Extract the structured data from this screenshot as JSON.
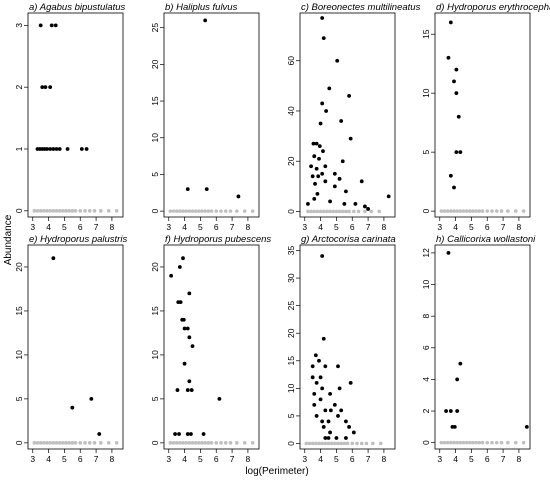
{
  "figure": {
    "ylabel": "Abundance",
    "xlabel": "log(Perimeter)"
  },
  "chart_data": [
    {
      "type": "scatter",
      "title": "a) Agabus bipustulatus",
      "xlim": [
        2.7,
        8.7
      ],
      "ylim": [
        -0.1,
        3.2
      ],
      "xticks": [
        3,
        4,
        5,
        6,
        7,
        8
      ],
      "yticks": [
        0,
        1,
        2,
        3
      ],
      "absent_color": "#bfbfbf",
      "present_color": "#000000",
      "present": [
        {
          "x": 3.5,
          "y": 3
        },
        {
          "x": 4.2,
          "y": 3
        },
        {
          "x": 4.45,
          "y": 3
        },
        {
          "x": 3.6,
          "y": 2
        },
        {
          "x": 3.8,
          "y": 2
        },
        {
          "x": 4.1,
          "y": 2
        },
        {
          "x": 3.3,
          "y": 1
        },
        {
          "x": 3.45,
          "y": 1
        },
        {
          "x": 3.6,
          "y": 1
        },
        {
          "x": 3.75,
          "y": 1
        },
        {
          "x": 3.9,
          "y": 1
        },
        {
          "x": 4.1,
          "y": 1
        },
        {
          "x": 4.3,
          "y": 1
        },
        {
          "x": 4.5,
          "y": 1
        },
        {
          "x": 4.7,
          "y": 1
        },
        {
          "x": 5.2,
          "y": 1
        },
        {
          "x": 6.1,
          "y": 1
        },
        {
          "x": 6.4,
          "y": 1
        }
      ],
      "absent": [
        3.1,
        3.3,
        3.5,
        3.7,
        3.9,
        4.1,
        4.3,
        4.5,
        4.7,
        4.9,
        5.1,
        5.3,
        5.5,
        5.7,
        6.0,
        6.3,
        6.6,
        6.9,
        7.3,
        7.8,
        8.3
      ]
    },
    {
      "type": "scatter",
      "title": "b) Haliplus fulvus",
      "xlim": [
        2.7,
        8.7
      ],
      "ylim": [
        -0.8,
        27
      ],
      "xticks": [
        3,
        4,
        5,
        6,
        7,
        8
      ],
      "yticks": [
        0,
        5,
        10,
        15,
        20,
        25
      ],
      "absent_color": "#bfbfbf",
      "present_color": "#000000",
      "present": [
        {
          "x": 5.3,
          "y": 26
        },
        {
          "x": 4.2,
          "y": 3
        },
        {
          "x": 5.4,
          "y": 3
        },
        {
          "x": 7.4,
          "y": 2
        }
      ],
      "absent": [
        3.1,
        3.3,
        3.5,
        3.7,
        3.9,
        4.1,
        4.3,
        4.5,
        4.7,
        4.9,
        5.1,
        5.3,
        5.5,
        5.7,
        6.0,
        6.3,
        6.6,
        6.9,
        7.3,
        7.8,
        8.3
      ]
    },
    {
      "type": "scatter",
      "title": "c) Boreonectes multilineatus",
      "xlim": [
        2.7,
        8.7
      ],
      "ylim": [
        -2.2,
        79
      ],
      "xticks": [
        3,
        4,
        5,
        6,
        7,
        8
      ],
      "yticks": [
        0,
        20,
        40,
        60
      ],
      "absent_color": "#bfbfbf",
      "present_color": "#000000",
      "present": [
        {
          "x": 4.1,
          "y": 77
        },
        {
          "x": 4.2,
          "y": 69
        },
        {
          "x": 4.55,
          "y": 49
        },
        {
          "x": 5.05,
          "y": 60
        },
        {
          "x": 4.1,
          "y": 43
        },
        {
          "x": 5.8,
          "y": 46
        },
        {
          "x": 4.35,
          "y": 40
        },
        {
          "x": 4.0,
          "y": 35
        },
        {
          "x": 5.3,
          "y": 36
        },
        {
          "x": 5.9,
          "y": 29
        },
        {
          "x": 3.55,
          "y": 27
        },
        {
          "x": 3.75,
          "y": 27
        },
        {
          "x": 3.95,
          "y": 26
        },
        {
          "x": 3.6,
          "y": 22
        },
        {
          "x": 3.9,
          "y": 21
        },
        {
          "x": 4.15,
          "y": 24
        },
        {
          "x": 3.4,
          "y": 18
        },
        {
          "x": 3.75,
          "y": 17
        },
        {
          "x": 4.3,
          "y": 18
        },
        {
          "x": 3.5,
          "y": 14
        },
        {
          "x": 3.85,
          "y": 14
        },
        {
          "x": 4.1,
          "y": 15
        },
        {
          "x": 4.3,
          "y": 12
        },
        {
          "x": 3.65,
          "y": 11
        },
        {
          "x": 4.9,
          "y": 15
        },
        {
          "x": 5.4,
          "y": 20
        },
        {
          "x": 4.9,
          "y": 10
        },
        {
          "x": 5.2,
          "y": 13
        },
        {
          "x": 5.6,
          "y": 8
        },
        {
          "x": 6.6,
          "y": 12
        },
        {
          "x": 6.2,
          "y": 3
        },
        {
          "x": 6.8,
          "y": 2
        },
        {
          "x": 3.6,
          "y": 5
        },
        {
          "x": 8.3,
          "y": 6
        },
        {
          "x": 3.8,
          "y": 7
        },
        {
          "x": 5.5,
          "y": 3
        },
        {
          "x": 3.2,
          "y": 3
        },
        {
          "x": 4.6,
          "y": 4
        },
        {
          "x": 7.0,
          "y": 1
        }
      ],
      "absent": [
        3.2,
        3.4,
        3.6,
        3.8,
        4.0,
        4.2,
        4.4,
        4.6,
        4.8,
        5.0,
        5.2,
        5.4,
        5.6,
        5.8,
        6.1,
        6.4,
        6.8,
        7.2,
        7.7
      ]
    },
    {
      "type": "scatter",
      "title": "d) Hydroporus erythrocephalus",
      "xlim": [
        2.7,
        8.7
      ],
      "ylim": [
        -0.5,
        16.8
      ],
      "xticks": [
        3,
        4,
        5,
        6,
        7,
        8
      ],
      "yticks": [
        0,
        5,
        10,
        15
      ],
      "absent_color": "#bfbfbf",
      "present_color": "#000000",
      "present": [
        {
          "x": 3.7,
          "y": 16
        },
        {
          "x": 3.55,
          "y": 13
        },
        {
          "x": 4.05,
          "y": 12
        },
        {
          "x": 3.9,
          "y": 11
        },
        {
          "x": 4.05,
          "y": 10
        },
        {
          "x": 4.2,
          "y": 8
        },
        {
          "x": 4.05,
          "y": 5
        },
        {
          "x": 4.3,
          "y": 5
        },
        {
          "x": 3.7,
          "y": 3
        },
        {
          "x": 3.9,
          "y": 2
        }
      ],
      "absent": [
        3.1,
        3.3,
        3.5,
        3.7,
        3.9,
        4.1,
        4.3,
        4.5,
        4.7,
        4.9,
        5.1,
        5.3,
        5.5,
        5.7,
        6.0,
        6.3,
        6.6,
        6.9,
        7.3,
        7.8,
        8.3
      ]
    },
    {
      "type": "scatter",
      "title": "e) Hydroporus palustris",
      "xlim": [
        2.7,
        8.7
      ],
      "ylim": [
        -0.7,
        22.5
      ],
      "xticks": [
        3,
        4,
        5,
        6,
        7,
        8
      ],
      "yticks": [
        0,
        5,
        10,
        15,
        20
      ],
      "absent_color": "#bfbfbf",
      "present_color": "#000000",
      "present": [
        {
          "x": 4.3,
          "y": 21
        },
        {
          "x": 5.5,
          "y": 4
        },
        {
          "x": 6.7,
          "y": 5
        },
        {
          "x": 7.2,
          "y": 1
        }
      ],
      "absent": [
        3.1,
        3.3,
        3.5,
        3.7,
        3.9,
        4.1,
        4.3,
        4.5,
        4.7,
        4.9,
        5.1,
        5.3,
        5.5,
        5.7,
        6.0,
        6.3,
        6.6,
        6.9,
        7.3,
        7.8,
        8.3
      ]
    },
    {
      "type": "scatter",
      "title": "f) Hydroporus pubescens",
      "xlim": [
        2.7,
        8.7
      ],
      "ylim": [
        -0.7,
        22.5
      ],
      "xticks": [
        3,
        4,
        5,
        6,
        7,
        8
      ],
      "yticks": [
        0,
        5,
        10,
        15,
        20
      ],
      "absent_color": "#bfbfbf",
      "present_color": "#000000",
      "present": [
        {
          "x": 3.9,
          "y": 21
        },
        {
          "x": 3.7,
          "y": 20
        },
        {
          "x": 3.15,
          "y": 19
        },
        {
          "x": 4.3,
          "y": 17
        },
        {
          "x": 3.6,
          "y": 16
        },
        {
          "x": 3.75,
          "y": 16
        },
        {
          "x": 3.85,
          "y": 14
        },
        {
          "x": 3.95,
          "y": 14
        },
        {
          "x": 4.0,
          "y": 13
        },
        {
          "x": 4.2,
          "y": 13
        },
        {
          "x": 4.3,
          "y": 12
        },
        {
          "x": 4.5,
          "y": 11
        },
        {
          "x": 4.0,
          "y": 9
        },
        {
          "x": 4.3,
          "y": 7
        },
        {
          "x": 3.55,
          "y": 6
        },
        {
          "x": 4.2,
          "y": 6
        },
        {
          "x": 4.45,
          "y": 6
        },
        {
          "x": 6.2,
          "y": 5
        },
        {
          "x": 3.4,
          "y": 1
        },
        {
          "x": 3.65,
          "y": 1
        },
        {
          "x": 4.2,
          "y": 1
        },
        {
          "x": 4.4,
          "y": 1
        },
        {
          "x": 5.2,
          "y": 1
        }
      ],
      "absent": [
        3.1,
        3.3,
        3.5,
        3.7,
        3.9,
        4.1,
        4.3,
        4.5,
        4.7,
        4.9,
        5.1,
        5.3,
        5.5,
        5.7,
        6.0,
        6.3,
        6.6,
        6.9,
        7.3,
        7.8,
        8.3
      ]
    },
    {
      "type": "scatter",
      "title": "g) Arctocorisa carinata",
      "xlim": [
        2.7,
        8.7
      ],
      "ylim": [
        -1,
        36
      ],
      "xticks": [
        3,
        4,
        5,
        6,
        7,
        8
      ],
      "yticks": [
        0,
        5,
        10,
        15,
        20,
        25,
        30,
        35
      ],
      "absent_color": "#bfbfbf",
      "present_color": "#000000",
      "present": [
        {
          "x": 4.1,
          "y": 34
        },
        {
          "x": 4.2,
          "y": 19
        },
        {
          "x": 3.7,
          "y": 16
        },
        {
          "x": 3.5,
          "y": 14
        },
        {
          "x": 3.9,
          "y": 15
        },
        {
          "x": 4.0,
          "y": 12
        },
        {
          "x": 3.5,
          "y": 12
        },
        {
          "x": 3.75,
          "y": 11
        },
        {
          "x": 4.3,
          "y": 14
        },
        {
          "x": 5.1,
          "y": 14
        },
        {
          "x": 5.9,
          "y": 11
        },
        {
          "x": 3.6,
          "y": 9
        },
        {
          "x": 4.1,
          "y": 10
        },
        {
          "x": 4.6,
          "y": 9
        },
        {
          "x": 5.2,
          "y": 10
        },
        {
          "x": 3.6,
          "y": 7
        },
        {
          "x": 4.0,
          "y": 8
        },
        {
          "x": 4.3,
          "y": 6
        },
        {
          "x": 4.65,
          "y": 6
        },
        {
          "x": 4.9,
          "y": 7
        },
        {
          "x": 5.3,
          "y": 6
        },
        {
          "x": 3.75,
          "y": 5
        },
        {
          "x": 4.1,
          "y": 4
        },
        {
          "x": 4.5,
          "y": 4
        },
        {
          "x": 5.1,
          "y": 5
        },
        {
          "x": 5.6,
          "y": 4
        },
        {
          "x": 4.2,
          "y": 3
        },
        {
          "x": 4.6,
          "y": 2
        },
        {
          "x": 5.8,
          "y": 3
        },
        {
          "x": 4.3,
          "y": 1
        },
        {
          "x": 4.5,
          "y": 1
        },
        {
          "x": 5.0,
          "y": 1
        },
        {
          "x": 5.6,
          "y": 1
        },
        {
          "x": 6.1,
          "y": 2
        }
      ],
      "absent": [
        3.1,
        3.3,
        3.5,
        3.7,
        3.9,
        4.1,
        4.3,
        4.5,
        4.7,
        4.9,
        5.1,
        5.3,
        5.5,
        5.7,
        6.0,
        6.3,
        6.6,
        6.9,
        7.3,
        7.8
      ]
    },
    {
      "type": "scatter",
      "title": "h) Callicorixa wollastoni",
      "xlim": [
        2.7,
        8.7
      ],
      "ylim": [
        -0.4,
        12.5
      ],
      "xticks": [
        3,
        4,
        5,
        6,
        7,
        8
      ],
      "yticks": [
        0,
        2,
        4,
        6,
        8,
        10,
        12
      ],
      "absent_color": "#bfbfbf",
      "present_color": "#000000",
      "present": [
        {
          "x": 3.55,
          "y": 12
        },
        {
          "x": 4.3,
          "y": 5
        },
        {
          "x": 4.1,
          "y": 4
        },
        {
          "x": 3.4,
          "y": 2
        },
        {
          "x": 3.7,
          "y": 2
        },
        {
          "x": 4.1,
          "y": 2
        },
        {
          "x": 3.8,
          "y": 1
        },
        {
          "x": 3.95,
          "y": 1
        },
        {
          "x": 8.5,
          "y": 1
        }
      ],
      "absent": [
        3.1,
        3.3,
        3.5,
        3.7,
        3.9,
        4.1,
        4.3,
        4.5,
        4.7,
        4.9,
        5.1,
        5.3,
        5.5,
        5.7,
        6.0,
        6.3,
        6.6,
        6.9,
        7.3,
        7.8,
        8.3
      ]
    }
  ]
}
